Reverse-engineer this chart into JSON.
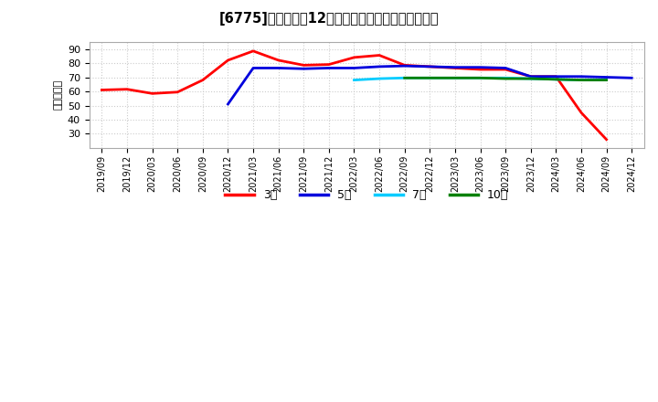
{
  "title": "[6775]　経常利益12か月移動合計の標準偏差の推移",
  "ylabel": "（百万円）",
  "ylim": [
    20,
    95
  ],
  "yticks": [
    30,
    40,
    50,
    60,
    70,
    80,
    90
  ],
  "background_color": "#ffffff",
  "grid_color": "#cccccc",
  "series": {
    "3年": {
      "color": "#ff0000",
      "dates": [
        "2019/09",
        "2019/12",
        "2020/03",
        "2020/06",
        "2020/09",
        "2020/12",
        "2021/03",
        "2021/06",
        "2021/09",
        "2021/12",
        "2022/03",
        "2022/06",
        "2022/09",
        "2022/12",
        "2023/03",
        "2023/06",
        "2023/09",
        "2023/12",
        "2024/03",
        "2024/06",
        "2024/09"
      ],
      "values": [
        61.0,
        61.5,
        58.5,
        59.5,
        68.0,
        82.0,
        88.5,
        82.0,
        78.5,
        79.0,
        84.0,
        85.5,
        78.5,
        77.5,
        76.5,
        75.5,
        75.5,
        70.5,
        70.5,
        45.0,
        26.0
      ]
    },
    "5年": {
      "color": "#0000dd",
      "dates": [
        "2020/12",
        "2021/03",
        "2021/06",
        "2021/09",
        "2021/12",
        "2022/03",
        "2022/06",
        "2022/09",
        "2022/12",
        "2023/03",
        "2023/06",
        "2023/09",
        "2023/12",
        "2024/03",
        "2024/06",
        "2024/09",
        "2024/12"
      ],
      "values": [
        51.0,
        76.5,
        76.5,
        76.0,
        76.5,
        76.5,
        77.5,
        78.0,
        77.5,
        77.0,
        77.0,
        76.5,
        70.5,
        70.5,
        70.5,
        70.0,
        69.5
      ]
    },
    "7年": {
      "color": "#00ccff",
      "dates": [
        "2022/03",
        "2022/06",
        "2022/09",
        "2022/12",
        "2023/03",
        "2023/06",
        "2023/09",
        "2023/12",
        "2024/03",
        "2024/06",
        "2024/09"
      ],
      "values": [
        68.0,
        69.0,
        69.5,
        69.5,
        69.5,
        69.5,
        69.5,
        69.0,
        68.5,
        68.0,
        68.0
      ]
    },
    "10年": {
      "color": "#008000",
      "dates": [
        "2022/09",
        "2022/12",
        "2023/03",
        "2023/06",
        "2023/09",
        "2023/12",
        "2024/03",
        "2024/06",
        "2024/09"
      ],
      "values": [
        69.5,
        69.5,
        69.5,
        69.5,
        69.0,
        69.0,
        68.5,
        68.0,
        68.0
      ]
    }
  },
  "all_dates": [
    "2019/09",
    "2019/12",
    "2020/03",
    "2020/06",
    "2020/09",
    "2020/12",
    "2021/03",
    "2021/06",
    "2021/09",
    "2021/12",
    "2022/03",
    "2022/06",
    "2022/09",
    "2022/12",
    "2023/03",
    "2023/06",
    "2023/09",
    "2023/12",
    "2024/03",
    "2024/06",
    "2024/09",
    "2024/12"
  ],
  "legend_labels": [
    "3年",
    "5年",
    "7年",
    "10年"
  ],
  "legend_colors": [
    "#ff0000",
    "#0000dd",
    "#00ccff",
    "#008000"
  ]
}
